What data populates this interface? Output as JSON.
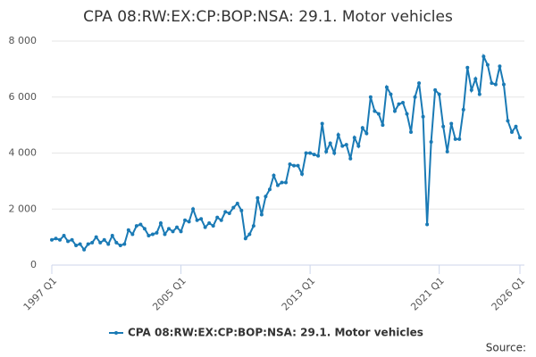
{
  "chart_data": {
    "type": "line",
    "title": "CPA 08:RW:EX:CP:BOP:NSA: 29.1. Motor vehicles",
    "source": "Source:",
    "categories": [
      "1997 Q1",
      null,
      null,
      null,
      null,
      null,
      null,
      null,
      null,
      null,
      null,
      null,
      null,
      null,
      null,
      null,
      null,
      null,
      null,
      null,
      null,
      null,
      null,
      null,
      null,
      null,
      null,
      null,
      null,
      null,
      null,
      null,
      "2005 Q1",
      null,
      null,
      null,
      null,
      null,
      null,
      null,
      null,
      null,
      null,
      null,
      null,
      null,
      null,
      null,
      null,
      null,
      null,
      null,
      null,
      null,
      null,
      null,
      null,
      null,
      null,
      null,
      null,
      null,
      null,
      null,
      "2013 Q1",
      null,
      null,
      null,
      null,
      null,
      null,
      null,
      null,
      null,
      null,
      null,
      null,
      null,
      null,
      null,
      null,
      null,
      null,
      null,
      null,
      null,
      null,
      null,
      null,
      null,
      null,
      null,
      null,
      null,
      null,
      null,
      "2021 Q1",
      null,
      null,
      null,
      null,
      null,
      null,
      null,
      null,
      null,
      null,
      null,
      null,
      null,
      null,
      null,
      null,
      null,
      null,
      null,
      "2026 Q1"
    ],
    "series": [
      {
        "name": "CPA 08:RW:EX:CP:BOP:NSA: 29.1. Motor vehicles",
        "color": "#1a7ab5",
        "values": [
          900,
          950,
          900,
          1050,
          850,
          900,
          700,
          750,
          550,
          750,
          800,
          1000,
          800,
          900,
          750,
          1050,
          800,
          700,
          750,
          1250,
          1100,
          1400,
          1450,
          1300,
          1050,
          1100,
          1150,
          1500,
          1100,
          1300,
          1200,
          1350,
          1200,
          1600,
          1550,
          2000,
          1600,
          1650,
          1350,
          1500,
          1400,
          1700,
          1600,
          1900,
          1850,
          2050,
          2200,
          1950,
          950,
          1100,
          1400,
          2400,
          1800,
          2450,
          2700,
          3200,
          2850,
          2950,
          2950,
          3600,
          3550,
          3550,
          3250,
          4000,
          4000,
          3950,
          3900,
          5050,
          4050,
          4350,
          4000,
          4650,
          4250,
          4300,
          3800,
          4550,
          4250,
          4900,
          4700,
          6000,
          5500,
          5400,
          5000,
          6350,
          6100,
          5500,
          5750,
          5800,
          5400,
          4750,
          6000,
          6500,
          5300,
          1450,
          4400,
          6250,
          6100,
          4950,
          4050,
          5050,
          4500,
          4500,
          5550,
          7050,
          6250,
          6650,
          6100,
          7450,
          7150,
          6500,
          6450,
          7100,
          6450,
          5150,
          4750,
          4950,
          4550
        ]
      }
    ],
    "ylim": [
      0,
      8000
    ],
    "yticks": [
      0,
      {
        "value": 2000,
        "label": "2 000"
      },
      {
        "value": 4000,
        "label": "4 000"
      },
      {
        "value": 6000,
        "label": "6 000"
      },
      {
        "value": 8000,
        "label": "8 000"
      }
    ],
    "grid": true
  }
}
